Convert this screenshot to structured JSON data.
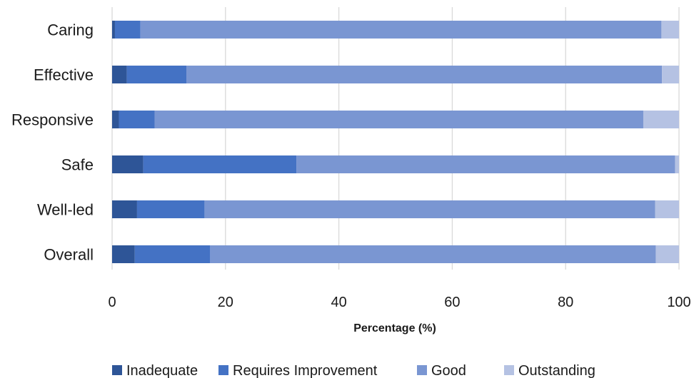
{
  "chart_data": {
    "type": "bar",
    "orientation": "horizontal",
    "stacked": true,
    "title": "",
    "xlabel": "Percentage (%)",
    "ylabel": "",
    "xlim": [
      0,
      100
    ],
    "xticks": [
      0,
      20,
      40,
      60,
      80,
      100
    ],
    "grid": "vertical",
    "legend_position": "bottom",
    "categories": [
      "Caring",
      "Effective",
      "Responsive",
      "Safe",
      "Well-led",
      "Overall"
    ],
    "series": [
      {
        "name": "Inadequate",
        "color": "#2e5597",
        "values": [
          0.5,
          2.6,
          1.2,
          5.5,
          4.4,
          4.0
        ]
      },
      {
        "name": "Requires Improvement",
        "color": "#4472c4",
        "values": [
          4.5,
          10.5,
          6.3,
          27.0,
          11.9,
          13.3
        ]
      },
      {
        "name": "Good",
        "color": "#7a96d2",
        "values": [
          91.9,
          83.9,
          86.2,
          66.8,
          79.5,
          78.6
        ]
      },
      {
        "name": "Outstanding",
        "color": "#b5c2e3",
        "values": [
          3.1,
          3.0,
          6.3,
          0.7,
          4.2,
          4.1
        ]
      }
    ]
  }
}
